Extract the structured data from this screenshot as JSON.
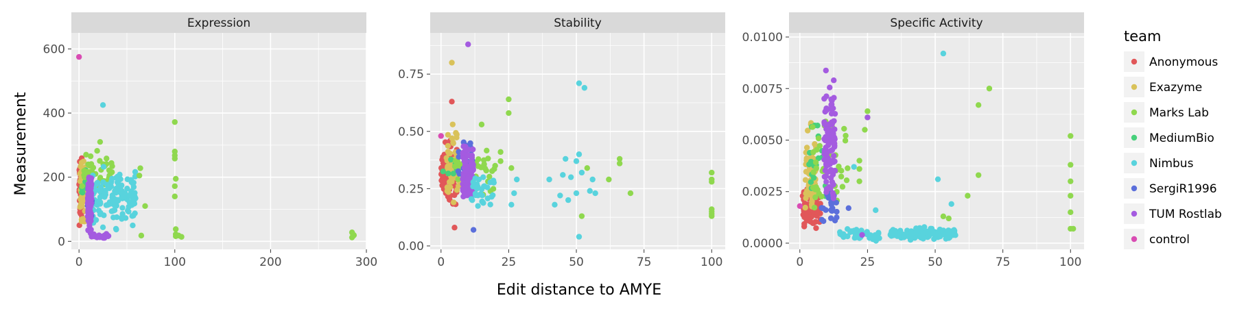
{
  "chart_data": {
    "type": "scatter",
    "facet_var": "assay",
    "xlabel": "Edit distance to AMYE",
    "ylabel": "Measurement",
    "legend": {
      "title": "team",
      "placement": "right"
    },
    "grid": true,
    "series": [
      {
        "name": "Anonymous",
        "color": "#E15759"
      },
      {
        "name": "Exazyme",
        "color": "#D9C25A"
      },
      {
        "name": "Marks Lab",
        "color": "#8FD84E"
      },
      {
        "name": "MediumBio",
        "color": "#47D07B"
      },
      {
        "name": "Nimbus",
        "color": "#58D3DD"
      },
      {
        "name": "SergiR1996",
        "color": "#5B6FDB"
      },
      {
        "name": "TUM Rostlab",
        "color": "#A45BE0"
      },
      {
        "name": "control",
        "color": "#D94CB3"
      }
    ],
    "panels": [
      {
        "title": "Expression",
        "xlim": [
          -8,
          300
        ],
        "ylim": [
          -25,
          650
        ],
        "xticks": [
          0,
          100,
          200,
          300
        ],
        "xtick_labels": [
          "0",
          "100",
          "200",
          "300"
        ],
        "yticks": [
          0,
          200,
          400,
          600
        ],
        "ytick_labels": [
          "0",
          "200",
          "400",
          "600"
        ],
        "clusters": [
          {
            "series": "Anonymous",
            "x": [
              0,
              4
            ],
            "y": [
              15,
              295
            ],
            "n": 60
          },
          {
            "series": "Exazyme",
            "x": [
              1,
              7
            ],
            "y": [
              20,
              290
            ],
            "n": 45
          },
          {
            "series": "MediumBio",
            "x": [
              2,
              8
            ],
            "y": [
              100,
              250
            ],
            "n": 10
          },
          {
            "series": "Marks Lab",
            "x": [
              3,
              35
            ],
            "y": [
              120,
              300
            ],
            "n": 45
          },
          {
            "series": "Nimbus",
            "x": [
              14,
              60
            ],
            "y": [
              20,
              260
            ],
            "n": 140
          },
          {
            "series": "SergiR1996",
            "x": [
              8,
              14
            ],
            "y": [
              40,
              170
            ],
            "n": 8
          },
          {
            "series": "TUM Rostlab",
            "x": [
              9,
              13
            ],
            "y": [
              2,
              240
            ],
            "n": 90
          },
          {
            "series": "TUM Rostlab",
            "x": [
              12,
              32
            ],
            "y": [
              8,
              25
            ],
            "n": 20
          }
        ],
        "points": [
          {
            "series": "control",
            "x": 0,
            "y": 575
          },
          {
            "series": "Nimbus",
            "x": 25,
            "y": 425
          },
          {
            "series": "Marks Lab",
            "x": 22,
            "y": 310
          },
          {
            "series": "Marks Lab",
            "x": 100,
            "y": 372
          },
          {
            "series": "Marks Lab",
            "x": 100,
            "y": 280
          },
          {
            "series": "Marks Lab",
            "x": 100,
            "y": 268
          },
          {
            "series": "Marks Lab",
            "x": 100,
            "y": 258
          },
          {
            "series": "Marks Lab",
            "x": 101,
            "y": 195
          },
          {
            "series": "Marks Lab",
            "x": 100,
            "y": 172
          },
          {
            "series": "Marks Lab",
            "x": 100,
            "y": 140
          },
          {
            "series": "Marks Lab",
            "x": 101,
            "y": 38
          },
          {
            "series": "Marks Lab",
            "x": 101,
            "y": 22
          },
          {
            "series": "Marks Lab",
            "x": 101,
            "y": 16
          },
          {
            "series": "Marks Lab",
            "x": 104,
            "y": 18
          },
          {
            "series": "Marks Lab",
            "x": 107,
            "y": 14
          },
          {
            "series": "Marks Lab",
            "x": 64,
            "y": 228
          },
          {
            "series": "Marks Lab",
            "x": 63,
            "y": 205
          },
          {
            "series": "Marks Lab",
            "x": 69,
            "y": 110
          },
          {
            "series": "Marks Lab",
            "x": 65,
            "y": 18
          },
          {
            "series": "Marks Lab",
            "x": 285,
            "y": 28
          },
          {
            "series": "Marks Lab",
            "x": 286,
            "y": 22
          },
          {
            "series": "Marks Lab",
            "x": 286,
            "y": 16
          },
          {
            "series": "Marks Lab",
            "x": 285,
            "y": 12
          },
          {
            "series": "Marks Lab",
            "x": 287,
            "y": 19
          }
        ]
      },
      {
        "title": "Stability",
        "xlim": [
          -4,
          105
        ],
        "ylim": [
          -0.015,
          0.93
        ],
        "xticks": [
          0,
          25,
          50,
          75,
          100
        ],
        "xtick_labels": [
          "0",
          "25",
          "50",
          "75",
          "100"
        ],
        "yticks": [
          0.0,
          0.25,
          0.5,
          0.75
        ],
        "ytick_labels": [
          "0.00",
          "0.25",
          "0.50",
          "0.75"
        ],
        "clusters": [
          {
            "series": "Anonymous",
            "x": [
              0,
              6
            ],
            "y": [
              0.13,
              0.5
            ],
            "n": 90
          },
          {
            "series": "Exazyme",
            "x": [
              2,
              7
            ],
            "y": [
              0.13,
              0.56
            ],
            "n": 60
          },
          {
            "series": "MediumBio",
            "x": [
              0,
              6
            ],
            "y": [
              0.28,
              0.4
            ],
            "n": 8
          },
          {
            "series": "Marks Lab",
            "x": [
              5,
              20
            ],
            "y": [
              0.17,
              0.45
            ],
            "n": 40
          },
          {
            "series": "SergiR1996",
            "x": [
              6,
              12
            ],
            "y": [
              0.2,
              0.55
            ],
            "n": 20
          },
          {
            "series": "TUM Rostlab",
            "x": [
              8,
              12
            ],
            "y": [
              0.12,
              0.48
            ],
            "n": 110
          },
          {
            "series": "Nimbus",
            "x": [
              11,
              20
            ],
            "y": [
              0.13,
              0.35
            ],
            "n": 30
          }
        ],
        "points": [
          {
            "series": "control",
            "x": 0,
            "y": 0.48
          },
          {
            "series": "Exazyme",
            "x": 4,
            "y": 0.8
          },
          {
            "series": "TUM Rostlab",
            "x": 10,
            "y": 0.88
          },
          {
            "series": "Anonymous",
            "x": 4,
            "y": 0.63
          },
          {
            "series": "Anonymous",
            "x": 5,
            "y": 0.08
          },
          {
            "series": "SergiR1996",
            "x": 12,
            "y": 0.07
          },
          {
            "series": "Marks Lab",
            "x": 25,
            "y": 0.64
          },
          {
            "series": "Marks Lab",
            "x": 25,
            "y": 0.58
          },
          {
            "series": "Marks Lab",
            "x": 15,
            "y": 0.53
          },
          {
            "series": "Marks Lab",
            "x": 22,
            "y": 0.41
          },
          {
            "series": "Marks Lab",
            "x": 22,
            "y": 0.37
          },
          {
            "series": "Marks Lab",
            "x": 26,
            "y": 0.34
          },
          {
            "series": "Marks Lab",
            "x": 20,
            "y": 0.35
          },
          {
            "series": "Marks Lab",
            "x": 54,
            "y": 0.34
          },
          {
            "series": "Marks Lab",
            "x": 66,
            "y": 0.38
          },
          {
            "series": "Marks Lab",
            "x": 66,
            "y": 0.36
          },
          {
            "series": "Marks Lab",
            "x": 62,
            "y": 0.29
          },
          {
            "series": "Marks Lab",
            "x": 70,
            "y": 0.23
          },
          {
            "series": "Marks Lab",
            "x": 52,
            "y": 0.13
          },
          {
            "series": "Marks Lab",
            "x": 100,
            "y": 0.32
          },
          {
            "series": "Marks Lab",
            "x": 100,
            "y": 0.29
          },
          {
            "series": "Marks Lab",
            "x": 100,
            "y": 0.28
          },
          {
            "series": "Marks Lab",
            "x": 100,
            "y": 0.16
          },
          {
            "series": "Marks Lab",
            "x": 100,
            "y": 0.15
          },
          {
            "series": "Marks Lab",
            "x": 100,
            "y": 0.14
          },
          {
            "series": "Marks Lab",
            "x": 100,
            "y": 0.13
          },
          {
            "series": "Nimbus",
            "x": 51,
            "y": 0.71
          },
          {
            "series": "Nimbus",
            "x": 53,
            "y": 0.69
          },
          {
            "series": "Nimbus",
            "x": 51,
            "y": 0.4
          },
          {
            "series": "Nimbus",
            "x": 46,
            "y": 0.38
          },
          {
            "series": "Nimbus",
            "x": 50,
            "y": 0.37
          },
          {
            "series": "Nimbus",
            "x": 45,
            "y": 0.31
          },
          {
            "series": "Nimbus",
            "x": 48,
            "y": 0.3
          },
          {
            "series": "Nimbus",
            "x": 40,
            "y": 0.29
          },
          {
            "series": "Nimbus",
            "x": 52,
            "y": 0.32
          },
          {
            "series": "Nimbus",
            "x": 56,
            "y": 0.29
          },
          {
            "series": "Nimbus",
            "x": 55,
            "y": 0.24
          },
          {
            "series": "Nimbus",
            "x": 57,
            "y": 0.23
          },
          {
            "series": "Nimbus",
            "x": 50,
            "y": 0.23
          },
          {
            "series": "Nimbus",
            "x": 44,
            "y": 0.22
          },
          {
            "series": "Nimbus",
            "x": 47,
            "y": 0.2
          },
          {
            "series": "Nimbus",
            "x": 42,
            "y": 0.18
          },
          {
            "series": "Nimbus",
            "x": 27,
            "y": 0.23
          },
          {
            "series": "Nimbus",
            "x": 28,
            "y": 0.29
          },
          {
            "series": "Nimbus",
            "x": 26,
            "y": 0.18
          },
          {
            "series": "Nimbus",
            "x": 51,
            "y": 0.04
          }
        ]
      },
      {
        "title": "Specific Activity",
        "xlim": [
          -4,
          105
        ],
        "ylim": [
          -0.0003,
          0.0102
        ],
        "xticks": [
          0,
          25,
          50,
          75,
          100
        ],
        "xtick_labels": [
          "0",
          "25",
          "50",
          "75",
          "100"
        ],
        "yticks": [
          0.0,
          0.0025,
          0.005,
          0.0075,
          0.01
        ],
        "ytick_labels": [
          "0.0000",
          "0.0025",
          "0.0050",
          "0.0075",
          "0.0100"
        ],
        "clusters": [
          {
            "series": "Anonymous",
            "x": [
              1,
              8
            ],
            "y": [
              0.0003,
              0.003
            ],
            "n": 70
          },
          {
            "series": "Exazyme",
            "x": [
              2,
              6
            ],
            "y": [
              0.0005,
              0.0062
            ],
            "n": 70
          },
          {
            "series": "MediumBio",
            "x": [
              3,
              10
            ],
            "y": [
              0.0005,
              0.0075
            ],
            "n": 20
          },
          {
            "series": "Marks Lab",
            "x": [
              4,
              18
            ],
            "y": [
              0.0005,
              0.0076
            ],
            "n": 40
          },
          {
            "series": "SergiR1996",
            "x": [
              8,
              14
            ],
            "y": [
              0.0008,
              0.0027
            ],
            "n": 25
          },
          {
            "series": "TUM Rostlab",
            "x": [
              9,
              13
            ],
            "y": [
              0.0005,
              0.0097
            ],
            "n": 110
          },
          {
            "series": "Nimbus",
            "x": [
              14,
              30
            ],
            "y": [
              0.0,
              0.0008
            ],
            "n": 40
          },
          {
            "series": "Nimbus",
            "x": [
              33,
              58
            ],
            "y": [
              0.0,
              0.0009
            ],
            "n": 110
          }
        ],
        "points": [
          {
            "series": "control",
            "x": 0,
            "y": 0.0018
          },
          {
            "series": "Nimbus",
            "x": 53,
            "y": 0.0092
          },
          {
            "series": "Nimbus",
            "x": 51,
            "y": 0.0031
          },
          {
            "series": "Nimbus",
            "x": 56,
            "y": 0.0019
          },
          {
            "series": "Nimbus",
            "x": 28,
            "y": 0.0016
          },
          {
            "series": "Nimbus",
            "x": 20,
            "y": 0.0037
          },
          {
            "series": "Marks Lab",
            "x": 70,
            "y": 0.0075
          },
          {
            "series": "Marks Lab",
            "x": 66,
            "y": 0.0067
          },
          {
            "series": "Marks Lab",
            "x": 66,
            "y": 0.0033
          },
          {
            "series": "Marks Lab",
            "x": 62,
            "y": 0.0023
          },
          {
            "series": "Marks Lab",
            "x": 53,
            "y": 0.0013
          },
          {
            "series": "Marks Lab",
            "x": 55,
            "y": 0.0012
          },
          {
            "series": "Marks Lab",
            "x": 25,
            "y": 0.0064
          },
          {
            "series": "Marks Lab",
            "x": 25,
            "y": 0.0061
          },
          {
            "series": "Marks Lab",
            "x": 24,
            "y": 0.0055
          },
          {
            "series": "Marks Lab",
            "x": 22,
            "y": 0.004
          },
          {
            "series": "Marks Lab",
            "x": 22,
            "y": 0.0036
          },
          {
            "series": "Marks Lab",
            "x": 22,
            "y": 0.003
          },
          {
            "series": "Marks Lab",
            "x": 100,
            "y": 0.0052
          },
          {
            "series": "Marks Lab",
            "x": 100,
            "y": 0.0038
          },
          {
            "series": "Marks Lab",
            "x": 100,
            "y": 0.003
          },
          {
            "series": "Marks Lab",
            "x": 100,
            "y": 0.0023
          },
          {
            "series": "Marks Lab",
            "x": 100,
            "y": 0.0015
          },
          {
            "series": "Marks Lab",
            "x": 100,
            "y": 0.0007
          },
          {
            "series": "Marks Lab",
            "x": 101,
            "y": 0.0007
          },
          {
            "series": "TUM Rostlab",
            "x": 25,
            "y": 0.0061
          },
          {
            "series": "TUM Rostlab",
            "x": 23,
            "y": 0.0004
          },
          {
            "series": "SergiR1996",
            "x": 18,
            "y": 0.0017
          },
          {
            "series": "SergiR1996",
            "x": 13,
            "y": 0.0011
          }
        ]
      }
    ]
  }
}
